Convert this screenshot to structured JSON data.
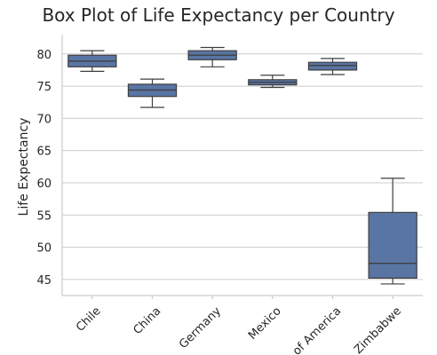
{
  "chart_data": {
    "type": "box",
    "title": "Box Plot of Life Expectancy per Country",
    "xlabel": "",
    "ylabel": "Life Expectancy",
    "ylim": [
      42.5,
      83
    ],
    "yticks": [
      45,
      50,
      55,
      60,
      65,
      70,
      75,
      80
    ],
    "grid": true,
    "categories": [
      "Chile",
      "China",
      "Germany",
      "Mexico",
      "of America",
      "Zimbabwe"
    ],
    "series": [
      {
        "boxes": [
          {
            "min": 77.3,
            "q1": 78.0,
            "median": 78.9,
            "q3": 79.8,
            "max": 80.5
          },
          {
            "min": 71.7,
            "q1": 73.4,
            "median": 74.4,
            "q3": 75.3,
            "max": 76.1
          },
          {
            "min": 78.0,
            "q1": 79.1,
            "median": 79.8,
            "q3": 80.5,
            "max": 81.0
          },
          {
            "min": 74.8,
            "q1": 75.2,
            "median": 75.6,
            "q3": 76.0,
            "max": 76.7
          },
          {
            "min": 76.8,
            "q1": 77.5,
            "median": 78.2,
            "q3": 78.7,
            "max": 79.3
          },
          {
            "min": 44.3,
            "q1": 45.2,
            "median": 47.5,
            "q3": 55.4,
            "max": 60.7
          }
        ]
      }
    ]
  }
}
